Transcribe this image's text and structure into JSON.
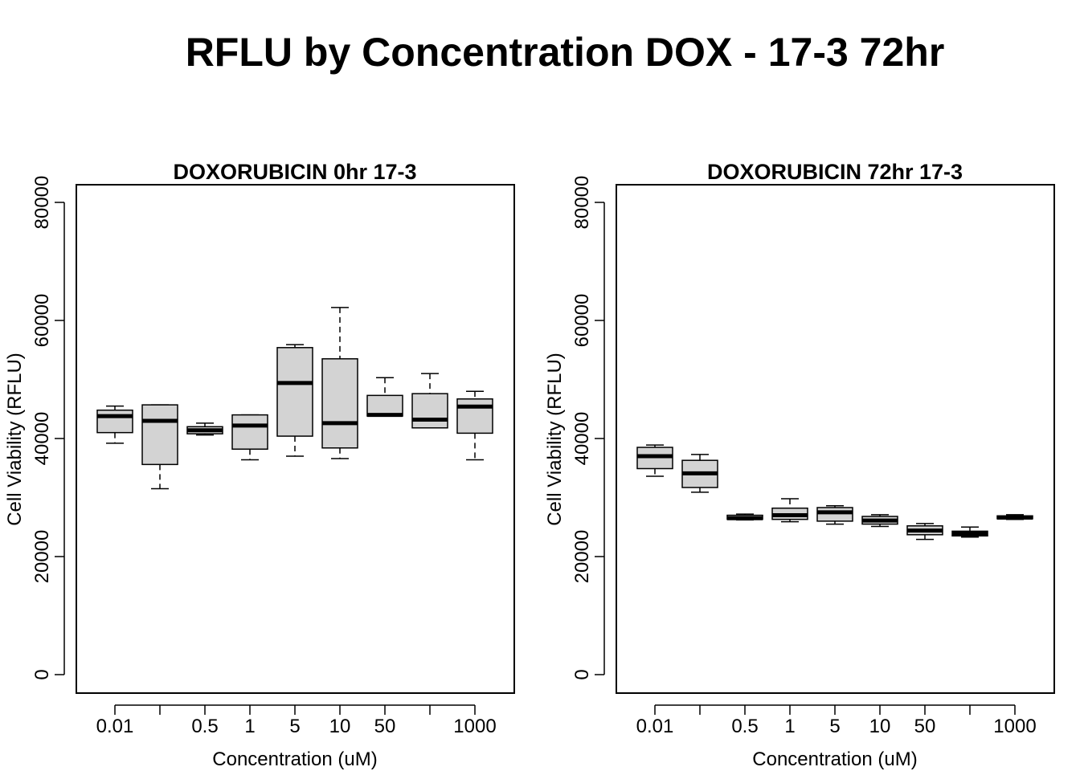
{
  "title": "RFLU by Concentration DOX - 17-3 72hr",
  "colors": {
    "box_fill": "#d3d3d3",
    "stroke": "#000000",
    "background": "#ffffff"
  },
  "chart_data": [
    {
      "type": "boxplot",
      "title": "DOXORUBICIN 0hr 17-3",
      "xlabel": "Concentration (uM)",
      "ylabel": "Cell Viability (RFLU)",
      "ylim": [
        0,
        80000
      ],
      "yticks": [
        "0",
        "20000",
        "40000",
        "60000",
        "80000"
      ],
      "xtick_labels": [
        "0.01",
        "",
        "0.5",
        "1",
        "5",
        "10",
        "50",
        "",
        "1000"
      ],
      "boxes": [
        {
          "min": 39200,
          "q1": 41000,
          "median": 43800,
          "q3": 44800,
          "max": 45500
        },
        {
          "min": 31500,
          "q1": 35600,
          "median": 43000,
          "q3": 45700,
          "max": 45700
        },
        {
          "min": 40600,
          "q1": 40800,
          "median": 41400,
          "q3": 42000,
          "max": 42600
        },
        {
          "min": 36400,
          "q1": 38200,
          "median": 42200,
          "q3": 44000,
          "max": 44000
        },
        {
          "min": 37000,
          "q1": 40400,
          "median": 49400,
          "q3": 55400,
          "max": 55900
        },
        {
          "min": 36600,
          "q1": 38400,
          "median": 42600,
          "q3": 53500,
          "max": 62200
        },
        {
          "min": 43800,
          "q1": 43800,
          "median": 44000,
          "q3": 47300,
          "max": 50300
        },
        {
          "min": 41800,
          "q1": 41800,
          "median": 43200,
          "q3": 47600,
          "max": 51000
        },
        {
          "min": 36400,
          "q1": 40900,
          "median": 45400,
          "q3": 46700,
          "max": 48000
        }
      ]
    },
    {
      "type": "boxplot",
      "title": "DOXORUBICIN 72hr 17-3",
      "xlabel": "Concentration (uM)",
      "ylabel": "Cell Viability (RFLU)",
      "ylim": [
        0,
        80000
      ],
      "yticks": [
        "0",
        "20000",
        "40000",
        "60000",
        "80000"
      ],
      "xtick_labels": [
        "0.01",
        "",
        "0.5",
        "1",
        "5",
        "10",
        "50",
        "",
        "1000"
      ],
      "boxes": [
        {
          "min": 33600,
          "q1": 34900,
          "median": 37000,
          "q3": 38500,
          "max": 38900
        },
        {
          "min": 30900,
          "q1": 31700,
          "median": 34100,
          "q3": 36300,
          "max": 37300
        },
        {
          "min": 26200,
          "q1": 26300,
          "median": 26500,
          "q3": 27000,
          "max": 27200
        },
        {
          "min": 25900,
          "q1": 26300,
          "median": 27000,
          "q3": 28200,
          "max": 29800
        },
        {
          "min": 25500,
          "q1": 26000,
          "median": 27500,
          "q3": 28300,
          "max": 28600
        },
        {
          "min": 25100,
          "q1": 25500,
          "median": 26100,
          "q3": 26800,
          "max": 27100
        },
        {
          "min": 22900,
          "q1": 23700,
          "median": 24400,
          "q3": 25200,
          "max": 25600
        },
        {
          "min": 23300,
          "q1": 23500,
          "median": 23900,
          "q3": 24300,
          "max": 25000
        },
        {
          "min": 26300,
          "q1": 26400,
          "median": 26600,
          "q3": 26900,
          "max": 27100
        }
      ]
    }
  ]
}
